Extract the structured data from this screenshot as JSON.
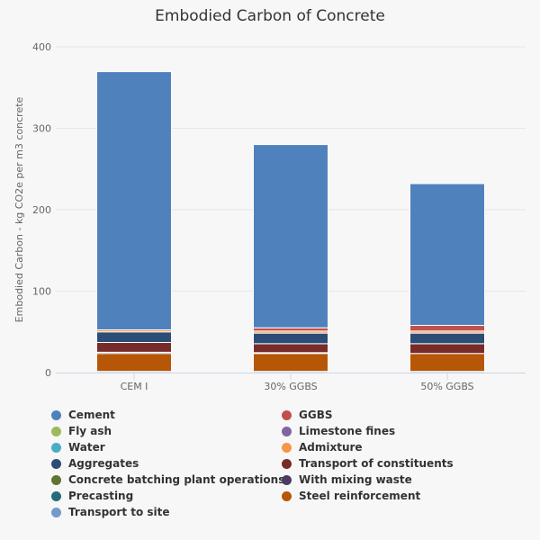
{
  "chart_data": {
    "type": "bar",
    "stacked": true,
    "title": "Embodied Carbon of Concrete",
    "xlabel": "",
    "ylabel": "Embodied Carbon - kg CO2e per m3 concrete",
    "ylim": [
      0,
      400
    ],
    "yticks": [
      0,
      100,
      200,
      300,
      400
    ],
    "grid": true,
    "legend_position": "bottom",
    "categories": [
      "CEM I",
      "30% GGBS",
      "50% GGBS"
    ],
    "series": [
      {
        "name": "Cement",
        "color": "#4f81bd",
        "values": [
          317,
          225,
          174
        ]
      },
      {
        "name": "GGBS",
        "color": "#c0504d",
        "values": [
          0,
          4,
          7
        ]
      },
      {
        "name": "Fly ash",
        "color": "#9bbb59",
        "values": [
          0,
          0,
          0
        ]
      },
      {
        "name": "Limestone fines",
        "color": "#8064a2",
        "values": [
          0,
          0,
          0
        ]
      },
      {
        "name": "Water",
        "color": "#4bacc6",
        "values": [
          0,
          0,
          0
        ]
      },
      {
        "name": "Admixture",
        "color": "#f79646",
        "values": [
          2.5,
          2.5,
          2.5
        ]
      },
      {
        "name": "Aggregates",
        "color": "#2c4d75",
        "values": [
          13,
          13,
          13
        ]
      },
      {
        "name": "Transport of constituents",
        "color": "#772c2a",
        "values": [
          12,
          11,
          12
        ]
      },
      {
        "name": "Concrete batching plant operations",
        "color": "#5f7530",
        "values": [
          0,
          1,
          0
        ]
      },
      {
        "name": "With mixing waste",
        "color": "#4d3b62",
        "values": [
          1.5,
          0,
          0
        ]
      },
      {
        "name": "Precasting",
        "color": "#276a7c",
        "values": [
          0,
          0,
          0
        ]
      },
      {
        "name": "Steel reinforcement",
        "color": "#b65708",
        "values": [
          22,
          22,
          22
        ]
      },
      {
        "name": "Transport to site",
        "color": "#729aca",
        "values": [
          1.5,
          1.5,
          1.5
        ]
      }
    ]
  }
}
